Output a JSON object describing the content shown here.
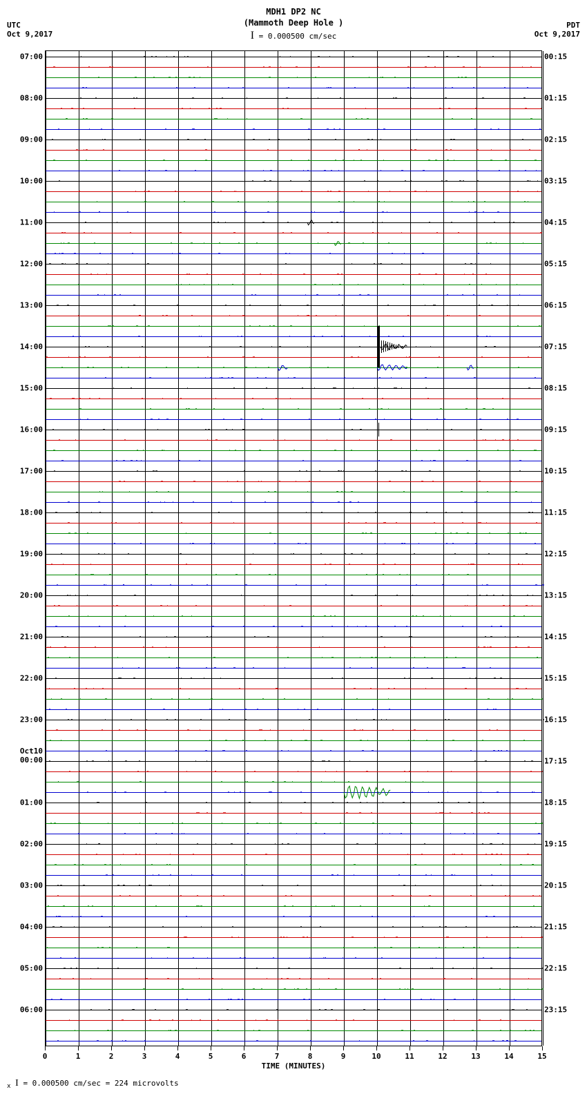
{
  "header": {
    "station_id": "MDH1 DP2 NC",
    "station_name": "(Mammoth Deep Hole )",
    "scale_text": "= 0.000500 cm/sec",
    "tz_left": "UTC",
    "date_left": "Oct  9,2017",
    "tz_right": "PDT",
    "date_right": "Oct  9,2017"
  },
  "chart": {
    "background_color": "#ffffff",
    "grid_color": "#000000",
    "trace_colors": [
      "#000000",
      "#d00000",
      "#008800",
      "#0000d0"
    ],
    "x_minutes": 15,
    "num_traces": 96,
    "trace_spacing": 15,
    "left_hour_labels": [
      {
        "idx": 0,
        "text": "07:00"
      },
      {
        "idx": 4,
        "text": "08:00"
      },
      {
        "idx": 8,
        "text": "09:00"
      },
      {
        "idx": 12,
        "text": "10:00"
      },
      {
        "idx": 16,
        "text": "11:00"
      },
      {
        "idx": 20,
        "text": "12:00"
      },
      {
        "idx": 24,
        "text": "13:00"
      },
      {
        "idx": 28,
        "text": "14:00"
      },
      {
        "idx": 32,
        "text": "15:00"
      },
      {
        "idx": 36,
        "text": "16:00"
      },
      {
        "idx": 40,
        "text": "17:00"
      },
      {
        "idx": 44,
        "text": "18:00"
      },
      {
        "idx": 48,
        "text": "19:00"
      },
      {
        "idx": 52,
        "text": "20:00"
      },
      {
        "idx": 56,
        "text": "21:00"
      },
      {
        "idx": 60,
        "text": "22:00"
      },
      {
        "idx": 64,
        "text": "23:00"
      },
      {
        "idx": 68,
        "text": "Oct10\n00:00"
      },
      {
        "idx": 72,
        "text": "01:00"
      },
      {
        "idx": 76,
        "text": "02:00"
      },
      {
        "idx": 80,
        "text": "03:00"
      },
      {
        "idx": 84,
        "text": "04:00"
      },
      {
        "idx": 88,
        "text": "05:00"
      },
      {
        "idx": 92,
        "text": "06:00"
      }
    ],
    "right_hour_labels": [
      {
        "idx": 0,
        "text": "00:15"
      },
      {
        "idx": 4,
        "text": "01:15"
      },
      {
        "idx": 8,
        "text": "02:15"
      },
      {
        "idx": 12,
        "text": "03:15"
      },
      {
        "idx": 16,
        "text": "04:15"
      },
      {
        "idx": 20,
        "text": "05:15"
      },
      {
        "idx": 24,
        "text": "06:15"
      },
      {
        "idx": 28,
        "text": "07:15"
      },
      {
        "idx": 32,
        "text": "08:15"
      },
      {
        "idx": 36,
        "text": "09:15"
      },
      {
        "idx": 40,
        "text": "10:15"
      },
      {
        "idx": 44,
        "text": "11:15"
      },
      {
        "idx": 48,
        "text": "12:15"
      },
      {
        "idx": 52,
        "text": "13:15"
      },
      {
        "idx": 56,
        "text": "14:15"
      },
      {
        "idx": 60,
        "text": "15:15"
      },
      {
        "idx": 64,
        "text": "16:15"
      },
      {
        "idx": 68,
        "text": "17:15"
      },
      {
        "idx": 72,
        "text": "18:15"
      },
      {
        "idx": 76,
        "text": "19:15"
      },
      {
        "idx": 80,
        "text": "20:15"
      },
      {
        "idx": 84,
        "text": "21:15"
      },
      {
        "idx": 88,
        "text": "22:15"
      },
      {
        "idx": 92,
        "text": "23:15"
      }
    ],
    "xticks": [
      0,
      1,
      2,
      3,
      4,
      5,
      6,
      7,
      8,
      9,
      10,
      11,
      12,
      13,
      14,
      15
    ],
    "xlabel": "TIME (MINUTES)",
    "events": [
      {
        "type": "spike",
        "trace_idx": 28,
        "x_min": 10.0,
        "height": 30,
        "color": "#000000",
        "width": 4
      },
      {
        "type": "wiggle",
        "trace_idx": 28,
        "x_min": 10.1,
        "width_min": 0.8,
        "color": "#000000"
      },
      {
        "type": "wiggle",
        "trace_idx": 30,
        "x_min": 7.0,
        "width_min": 0.3,
        "color": "#0000d0"
      },
      {
        "type": "wiggle",
        "trace_idx": 30,
        "x_min": 10.0,
        "width_min": 0.9,
        "color": "#0000d0"
      },
      {
        "type": "wiggle",
        "trace_idx": 30,
        "x_min": 12.7,
        "width_min": 0.2,
        "color": "#0000d0"
      },
      {
        "type": "spike",
        "trace_idx": 21,
        "x_min": 10.0,
        "height": 8,
        "color": "#000000",
        "width": 1
      },
      {
        "type": "spike",
        "trace_idx": 36,
        "x_min": 10.05,
        "height": 10,
        "color": "#000000",
        "width": 1
      },
      {
        "type": "wiggle",
        "trace_idx": 71,
        "x_min": 9.0,
        "width_min": 1.4,
        "color": "#008800",
        "big": true
      },
      {
        "type": "wiggle",
        "trace_idx": 16,
        "x_min": 7.9,
        "width_min": 0.2,
        "color": "#000000"
      },
      {
        "type": "wiggle",
        "trace_idx": 18,
        "x_min": 8.7,
        "width_min": 0.2,
        "color": "#008800"
      }
    ]
  },
  "footer": {
    "text": "= 0.000500 cm/sec =    224 microvolts"
  }
}
